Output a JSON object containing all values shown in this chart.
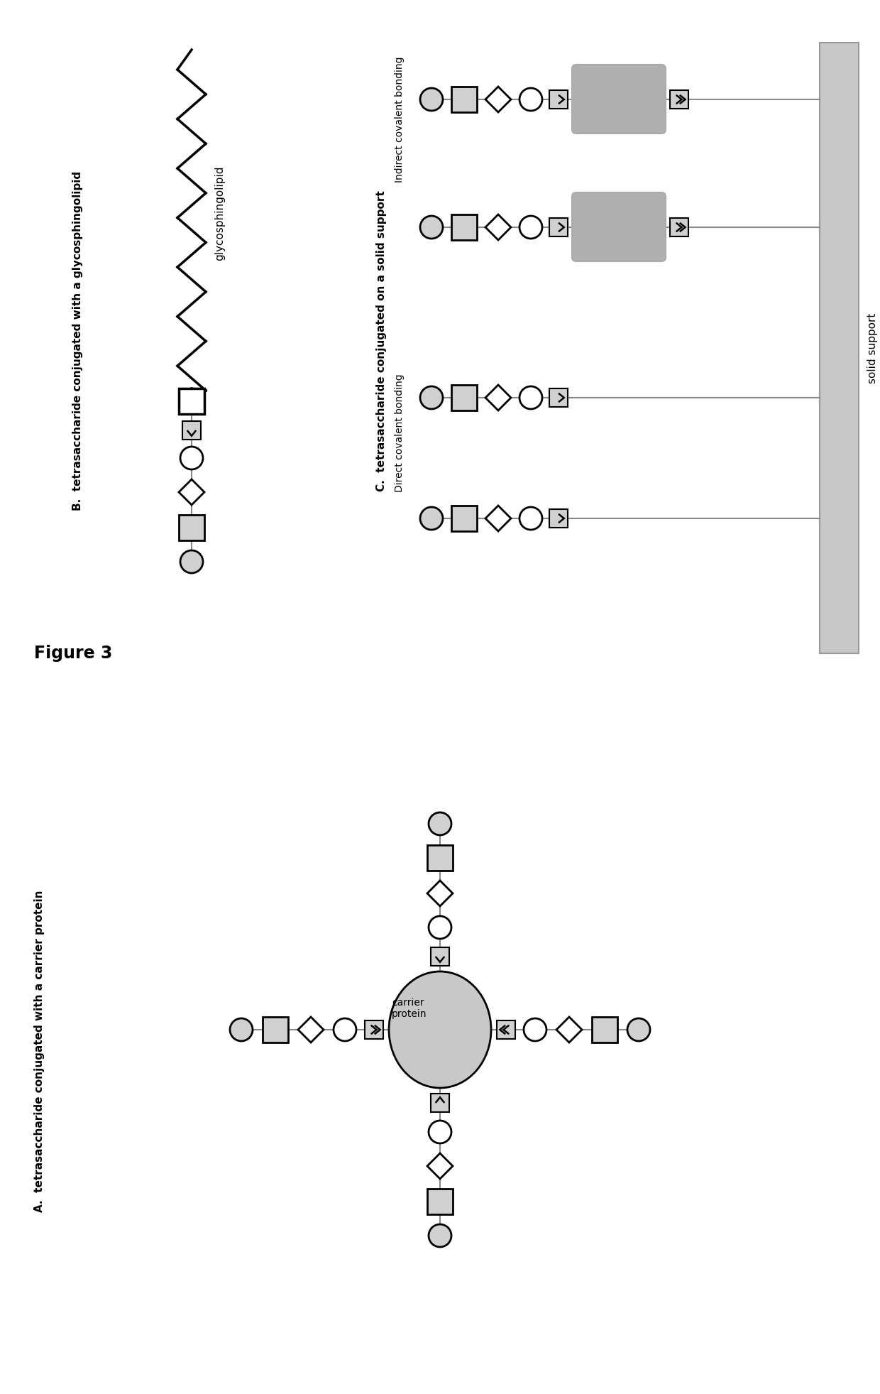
{
  "figure_title": "Figure 3",
  "panel_A_label": "A.  tetrasaccharide conjugated with a carrier protein",
  "panel_B_label": "B.  tetrasaccharide conjugated with a glycosphingolipid",
  "panel_C_label": "C.  tetrasaccharide conjugated on a solid support",
  "label_glycosphingolipid": "glycosphingolipid",
  "label_carrier_protein": "carrier\nprotein",
  "label_direct": "Direct covalent bonding",
  "label_indirect": "Indirect covalent bonding",
  "label_solid_support": "solid support",
  "bg_color": "#ffffff",
  "gray_fill": "#b0b0b0",
  "light_gray_fill": "#c8c8c8",
  "lighter_gray": "#d0d0d0",
  "shape_stroke": "#000000",
  "line_color": "#808080",
  "solid_support_color": "#c8c8c8",
  "solid_support_edge": "#aaaaaa"
}
